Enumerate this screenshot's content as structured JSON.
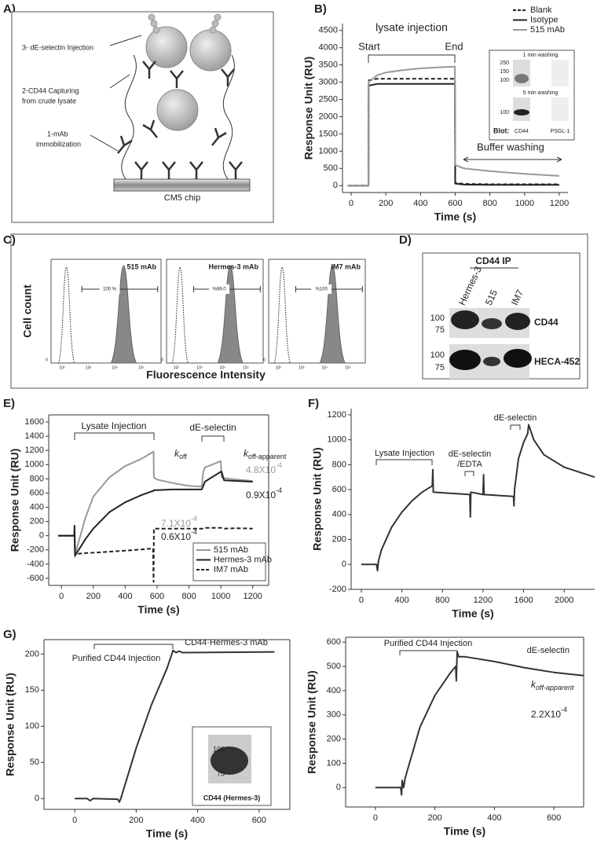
{
  "panel_labels": [
    "A)",
    "B)",
    "C)",
    "D)",
    "E)",
    "F)",
    "G)"
  ],
  "diagram": {
    "steps": [
      "3- dE-selectin Injection",
      "2-CD44 Capturing",
      "from crude lysate",
      "1-mAb",
      "immobilization"
    ],
    "chip": "CM5 chip"
  },
  "flow": {
    "y_label": "Cell count",
    "x_label": "Fluorescence Intensity",
    "panels": [
      {
        "title": "515 mAb",
        "gate": "100 %"
      },
      {
        "title": "Hermes-3 mAb",
        "gate": "%99.0"
      },
      {
        "title": "IM7 mAb",
        "gate": "%100"
      }
    ],
    "ticks": [
      "0",
      "10²",
      "10³",
      "10⁴",
      "10⁵"
    ]
  },
  "blot": {
    "title": "CD44 IP",
    "lanes": [
      "Hermes-3",
      "515",
      "IM7"
    ],
    "rows": [
      {
        "label": "CD44",
        "markers": [
          "100",
          "75"
        ]
      },
      {
        "label": "HECA-452",
        "markers": [
          "100",
          "75"
        ]
      }
    ]
  },
  "chart_data": [
    {
      "type": "line",
      "x_label": "Time (s)",
      "y_label": "Response Unit (RU)",
      "legend": "upper right",
      "frame": false,
      "xlim": [
        -50,
        1250
      ],
      "xticks": [
        0,
        200,
        400,
        600,
        800,
        1000,
        1200
      ],
      "ylim": [
        -200,
        4700
      ],
      "yticks": [
        0,
        500,
        1000,
        1500,
        2000,
        2500,
        3000,
        3500,
        4000,
        4500
      ],
      "x": [
        -20,
        100,
        101,
        150,
        200,
        300,
        400,
        500,
        598,
        600,
        650,
        800,
        1000,
        1200
      ],
      "series": [
        {
          "name": "Blank",
          "color": "#222222",
          "style": "dashed",
          "values": [
            0,
            0,
            3050,
            3100,
            3100,
            3100,
            3100,
            3100,
            3100,
            80,
            50,
            40,
            40,
            40
          ]
        },
        {
          "name": "Isotype",
          "color": "#222222",
          "style": "solid",
          "values": [
            0,
            0,
            2900,
            2950,
            2950,
            2950,
            2950,
            2950,
            2950,
            60,
            30,
            20,
            20,
            20
          ]
        },
        {
          "name": "515 mAb",
          "color": "#999999",
          "style": "solid",
          "values": [
            0,
            0,
            3000,
            3200,
            3280,
            3350,
            3400,
            3430,
            3450,
            600,
            500,
            420,
            340,
            280
          ]
        }
      ],
      "annotations": {
        "injection": "lysate injection",
        "start": "Start",
        "end": "End",
        "wash": "Buffer washing"
      },
      "inset": {
        "top_title": "1 min washing",
        "bottom_title": "5 min washing",
        "top_markers": [
          "250",
          "150",
          "100"
        ],
        "bottom_markers": [
          "100"
        ],
        "blot_label": "Blot:",
        "lanes": [
          "CD44",
          "PSGL-1"
        ]
      }
    },
    {
      "type": "line",
      "x_label": "Time (s)",
      "y_label": "Response Unit (RU)",
      "legend": "lower right",
      "frame": true,
      "xlim": [
        -80,
        1300
      ],
      "xticks": [
        0,
        200,
        400,
        600,
        800,
        1000,
        1200
      ],
      "ylim": [
        -700,
        1700
      ],
      "yticks": [
        -600,
        -400,
        -200,
        0,
        200,
        400,
        600,
        800,
        1000,
        1200,
        1400,
        1600
      ],
      "x": [
        -20,
        80,
        82,
        85,
        100,
        150,
        200,
        300,
        400,
        500,
        575,
        578,
        580,
        600,
        700,
        800,
        880,
        890,
        900,
        1000,
        1005,
        1020,
        1100,
        1200
      ],
      "series": [
        {
          "name": "515 mAb",
          "color": "#999999",
          "style": "solid",
          "values": [
            0,
            0,
            0,
            -300,
            -150,
            250,
            550,
            820,
            980,
            1080,
            1180,
            1180,
            820,
            790,
            740,
            700,
            690,
            900,
            960,
            1050,
            820,
            810,
            790,
            770
          ]
        },
        {
          "name": "Hermes-3 mAb",
          "color": "#222222",
          "style": "solid",
          "values": [
            0,
            0,
            140,
            -280,
            -230,
            -50,
            100,
            330,
            470,
            570,
            630,
            630,
            640,
            640,
            650,
            650,
            650,
            700,
            760,
            900,
            900,
            780,
            770,
            760
          ]
        },
        {
          "name": "IM7 mAb",
          "color": "#222222",
          "style": "dashed",
          "values": [
            0,
            0,
            0,
            -260,
            -255,
            -245,
            -240,
            -225,
            -210,
            -195,
            -180,
            -650,
            100,
            100,
            100,
            100,
            100,
            100,
            110,
            110,
            110,
            100,
            105,
            100
          ]
        }
      ],
      "annotations": {
        "injection": "Lysate Injection",
        "selectin": "dE-selectin",
        "koff": {
          "base": "k",
          "sub": "off"
        },
        "koff_app": {
          "base": "k",
          "sub": "off-apparent"
        },
        "rates": [
          {
            "base": "7.1X10",
            "exp": "-4"
          },
          {
            "base": "0.6X10",
            "exp": "-4"
          },
          {
            "base": "4.8X10",
            "exp": "-4"
          },
          {
            "base": "0.9X10",
            "exp": "-4"
          }
        ]
      }
    },
    {
      "type": "line",
      "x_label": "Time (s)",
      "y_label": "Response Unit (RU)",
      "frame": false,
      "xlim": [
        -100,
        2300
      ],
      "xticks": [
        0,
        400,
        800,
        1200,
        1600,
        2000
      ],
      "ylim": [
        -200,
        1250
      ],
      "yticks": [
        -200,
        0,
        200,
        400,
        600,
        800,
        1000,
        1200
      ],
      "x": [
        0,
        150,
        160,
        170,
        200,
        300,
        400,
        500,
        600,
        700,
        705,
        710,
        800,
        1000,
        1070,
        1075,
        1080,
        1200,
        1205,
        1210,
        1500,
        1505,
        1510,
        1550,
        1600,
        1640,
        1650,
        1700,
        1800,
        2000,
        2300
      ],
      "series": [
        {
          "color": "#333333",
          "style": "solid",
          "values": [
            0,
            0,
            -50,
            30,
            120,
            300,
            420,
            510,
            580,
            630,
            760,
            580,
            575,
            565,
            560,
            380,
            580,
            560,
            720,
            560,
            545,
            470,
            600,
            850,
            980,
            1050,
            1120,
            1000,
            880,
            780,
            700
          ]
        }
      ],
      "annotations": {
        "injection": "Lysate Injection",
        "selectin_edta": [
          "dE-selectin",
          "/EDTA"
        ],
        "selectin": "dE-selectin"
      }
    },
    {
      "type": "line",
      "x_label": "Time (s)",
      "y_label": "Response Unit (RU)",
      "frame": true,
      "xlim": [
        -100,
        700
      ],
      "xticks": [
        0,
        200,
        400,
        600
      ],
      "ylim": [
        -15,
        220
      ],
      "yticks": [
        0,
        50,
        100,
        150,
        200
      ],
      "x": [
        0,
        40,
        50,
        60,
        140,
        145,
        150,
        200,
        250,
        300,
        320,
        330,
        340,
        350,
        650
      ],
      "series": [
        {
          "color": "#333333",
          "style": "solid",
          "values": [
            0,
            0,
            -3,
            0,
            -1,
            -5,
            0,
            70,
            130,
            180,
            205,
            202,
            204,
            202,
            203
          ]
        }
      ],
      "annotations": {
        "injection": "Purified CD44 Injection",
        "label": "CD44·Hermes-3 mAb"
      },
      "inset": {
        "markers": [
          "100",
          "75"
        ],
        "caption": "CD44 (Hermes-3)"
      }
    },
    {
      "type": "line",
      "x_label": "Time (s)",
      "y_label": "Response Unit (RU)",
      "frame": true,
      "xlim": [
        -100,
        700
      ],
      "xticks": [
        0,
        200,
        400,
        600
      ],
      "ylim": [
        -80,
        620
      ],
      "yticks": [
        0,
        100,
        200,
        300,
        400,
        500,
        600
      ],
      "x": [
        0,
        80,
        85,
        88,
        90,
        95,
        100,
        150,
        200,
        250,
        270,
        272,
        275,
        280,
        300,
        400,
        500,
        600,
        700
      ],
      "series": [
        {
          "color": "#333333",
          "style": "solid",
          "values": [
            0,
            0,
            0,
            -30,
            30,
            0,
            40,
            250,
            380,
            470,
            500,
            440,
            560,
            540,
            540,
            520,
            495,
            475,
            462
          ]
        }
      ],
      "annotations": {
        "injection": "Purified CD44 Injection",
        "label": "dE-selectin",
        "koff_app": {
          "base": "k",
          "sub": "off-apparent"
        },
        "rate": {
          "base": "2.2X10",
          "exp": "-4"
        }
      }
    }
  ]
}
